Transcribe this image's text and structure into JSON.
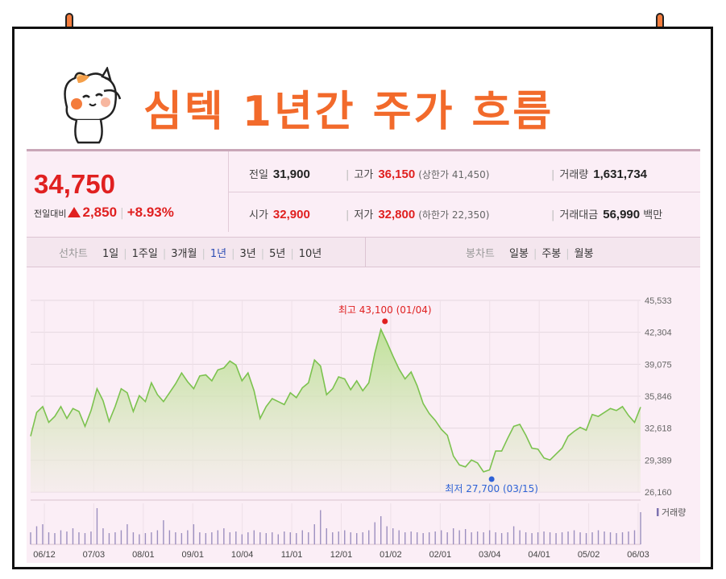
{
  "title": "심텍 1년간 주가 흐름",
  "quote": {
    "price": "34,750",
    "change_label": "전일대비",
    "change_value": "2,850",
    "change_pct": "+8.93%",
    "prev_close_label": "전일",
    "prev_close": "31,900",
    "high_label": "고가",
    "high": "36,150",
    "upper_limit": "(상한가 41,450)",
    "volume_label": "거래량",
    "volume": "1,631,734",
    "open_label": "시가",
    "open": "32,900",
    "low_label": "저가",
    "low": "32,800",
    "lower_limit": "(하한가 22,350)",
    "value_label": "거래대금",
    "value": "56,990",
    "value_unit": "백만"
  },
  "tabs": {
    "line_label": "선차트",
    "line_items": [
      "1일",
      "1주일",
      "3개월",
      "1년",
      "3년",
      "5년",
      "10년"
    ],
    "line_active": "1년",
    "candle_label": "봉차트",
    "candle_items": [
      "일봉",
      "주봉",
      "월봉"
    ]
  },
  "colors": {
    "up": "#e02020",
    "line": "#7cc24f",
    "fill_top": "#b9e08f",
    "fill_bottom": "#f3ece8",
    "low_marker": "#2f62d6",
    "accent": "#f26a2b"
  },
  "chart_data": {
    "type": "area",
    "x_tick_labels": [
      "06/12",
      "07/03",
      "08/01",
      "09/01",
      "10/04",
      "11/01",
      "12/01",
      "01/02",
      "02/01",
      "03/04",
      "04/01",
      "05/02",
      "06/03"
    ],
    "y_tick_labels": [
      "45,533",
      "42,304",
      "39,075",
      "35,846",
      "32,618",
      "29,389",
      "26,160"
    ],
    "ylim": [
      26160,
      45533
    ],
    "values": [
      31800,
      34200,
      34800,
      33200,
      33800,
      34800,
      33600,
      34600,
      34300,
      32800,
      34400,
      36600,
      35400,
      33300,
      34800,
      36600,
      36200,
      34300,
      35900,
      35300,
      37200,
      36000,
      35300,
      36200,
      37100,
      38200,
      37300,
      36600,
      37900,
      38000,
      37400,
      38500,
      38700,
      39400,
      39000,
      37400,
      38200,
      36400,
      33600,
      34800,
      35600,
      35300,
      35000,
      36200,
      35700,
      36700,
      37200,
      39500,
      38900,
      36000,
      36600,
      37800,
      37600,
      36500,
      37400,
      36400,
      37200,
      40200,
      42600,
      41300,
      39900,
      38600,
      37600,
      38300,
      36900,
      35100,
      34100,
      33400,
      32500,
      31900,
      29800,
      28900,
      28700,
      29400,
      29100,
      28200,
      28400,
      30300,
      30300,
      31600,
      32800,
      33000,
      31900,
      30600,
      30500,
      29600,
      29400,
      30000,
      30600,
      31800,
      32300,
      32700,
      32400,
      34000,
      33800,
      34200,
      34600,
      34400,
      34800,
      33900,
      33200,
      34750
    ],
    "high_annotation": "최고 43,100 (01/04)",
    "low_annotation": "최저 27,700 (03/15)",
    "volume_label": "거래량",
    "volume_relative": [
      0.3,
      0.45,
      0.5,
      0.3,
      0.28,
      0.35,
      0.32,
      0.4,
      0.3,
      0.28,
      0.32,
      0.9,
      0.4,
      0.28,
      0.3,
      0.35,
      0.5,
      0.3,
      0.25,
      0.28,
      0.3,
      0.35,
      0.6,
      0.35,
      0.3,
      0.28,
      0.35,
      0.5,
      0.3,
      0.28,
      0.3,
      0.35,
      0.4,
      0.3,
      0.32,
      0.25,
      0.3,
      0.35,
      0.3,
      0.28,
      0.3,
      0.25,
      0.32,
      0.3,
      0.28,
      0.35,
      0.3,
      0.5,
      0.85,
      0.4,
      0.3,
      0.32,
      0.35,
      0.3,
      0.28,
      0.3,
      0.35,
      0.55,
      0.7,
      0.45,
      0.4,
      0.35,
      0.3,
      0.32,
      0.3,
      0.28,
      0.3,
      0.32,
      0.35,
      0.3,
      0.4,
      0.35,
      0.38,
      0.3,
      0.32,
      0.3,
      0.35,
      0.3,
      0.28,
      0.3,
      0.45,
      0.35,
      0.3,
      0.28,
      0.3,
      0.32,
      0.3,
      0.28,
      0.3,
      0.32,
      0.35,
      0.3,
      0.28,
      0.3,
      0.35,
      0.32,
      0.3,
      0.28,
      0.3,
      0.32,
      0.35,
      0.8
    ]
  }
}
